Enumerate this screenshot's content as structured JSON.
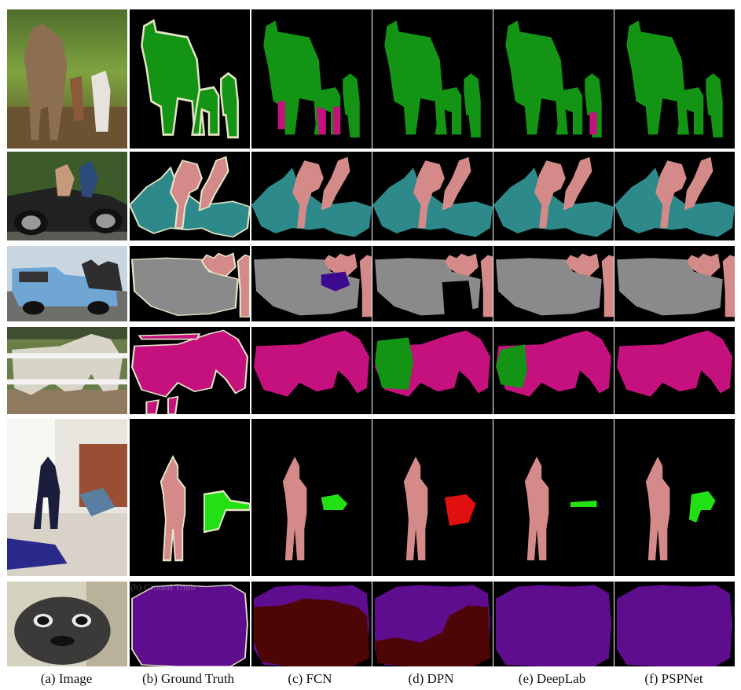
{
  "figure": {
    "columns": [
      {
        "id": "image",
        "caption": "(a) Image"
      },
      {
        "id": "gt",
        "caption": "(b) Ground Truth"
      },
      {
        "id": "fcn",
        "caption": "(c) FCN"
      },
      {
        "id": "dpn",
        "caption": "(d) DPN"
      },
      {
        "id": "deeplab",
        "caption": "(e) DeepLab"
      },
      {
        "id": "pspnet",
        "caption": "(f) PSPNet"
      }
    ],
    "rows": [
      {
        "id": "cows",
        "subject": "cows"
      },
      {
        "id": "motorbike",
        "subject": "motorbike-people"
      },
      {
        "id": "truck",
        "subject": "car-people"
      },
      {
        "id": "horse",
        "subject": "horse"
      },
      {
        "id": "room",
        "subject": "person-sofa"
      },
      {
        "id": "pug",
        "subject": "dog"
      }
    ],
    "watermark": "(b) Ground Truth",
    "class_colors": {
      "cow": "#149414",
      "person": "#d38a89",
      "motorbike": "#2e8a8a",
      "car": "#8a8a8a",
      "horse": "#c4117e",
      "sofa": "#22e014",
      "dog": "#5f0d8f",
      "cat": "#4d0505",
      "bus": "#3c0a8f",
      "error_red": "#e01010",
      "boundary": "#e6e6c6",
      "background": "#000000"
    }
  }
}
